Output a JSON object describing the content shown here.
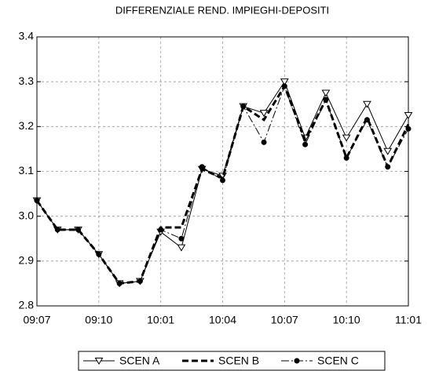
{
  "chart_data": {
    "type": "line",
    "title": "DIFFERENZIALE REND. IMPIEGHI-DEPOSITI",
    "categories": [
      "09:07",
      null,
      null,
      "09:10",
      null,
      null,
      "10:01",
      null,
      null,
      "10:04",
      null,
      null,
      "10:07",
      null,
      null,
      "10:10",
      null,
      null,
      "11:01"
    ],
    "series": [
      {
        "name": "SCEN A",
        "color": "#000000",
        "dash": "solid",
        "marker": "triangle-down",
        "values": [
          3.035,
          2.97,
          2.97,
          2.915,
          2.85,
          2.855,
          2.965,
          2.93,
          3.105,
          3.09,
          3.245,
          3.23,
          3.3,
          3.175,
          3.275,
          3.175,
          3.25,
          3.145,
          3.225
        ]
      },
      {
        "name": "SCEN B",
        "color": "#000000",
        "dash": "dashed",
        "marker": "none",
        "values": [
          3.035,
          2.97,
          2.97,
          2.915,
          2.85,
          2.855,
          2.975,
          2.975,
          3.105,
          3.085,
          3.245,
          3.215,
          3.29,
          3.17,
          3.26,
          3.13,
          3.22,
          3.11,
          3.205
        ]
      },
      {
        "name": "SCEN C",
        "color": "#000000",
        "dash": "dashdot",
        "marker": "circle",
        "values": [
          3.035,
          2.97,
          2.97,
          2.915,
          2.85,
          2.855,
          2.97,
          2.95,
          3.11,
          3.08,
          3.245,
          3.165,
          3.29,
          3.16,
          3.26,
          3.13,
          3.215,
          3.11,
          3.195
        ]
      }
    ],
    "ylim": [
      2.8,
      3.4
    ],
    "yticks": [
      2.8,
      2.9,
      {
        "value": 3,
        "label": "3.0"
      },
      3.1,
      3.2,
      3.3,
      3.4
    ],
    "grid": true,
    "legend": "bottom"
  }
}
